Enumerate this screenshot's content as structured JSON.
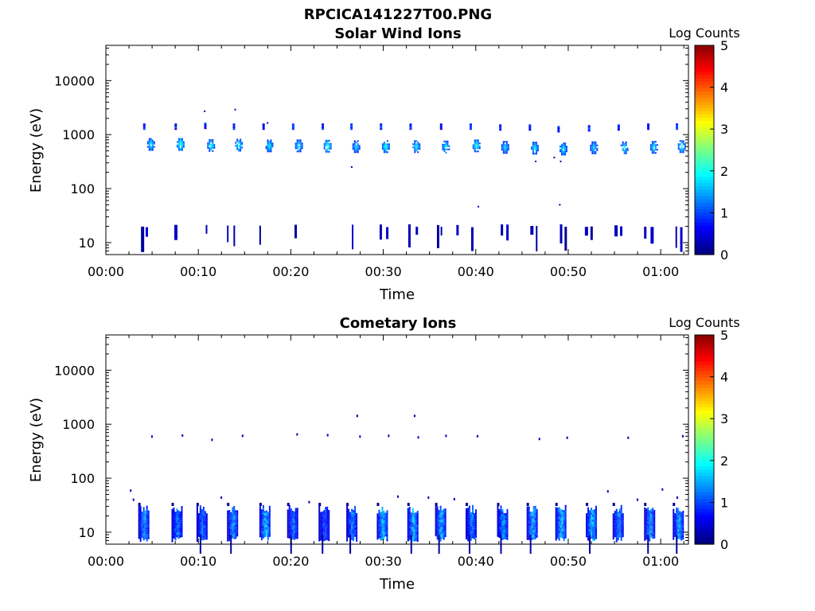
{
  "figure_title": "RPCICA141227T00.PNG",
  "chart_data": [
    {
      "type": "heatmap",
      "title": "Solar Wind Ions",
      "xlabel": "Time",
      "ylabel": "Energy (eV)",
      "x_ticks": [
        "00:00",
        "00:10",
        "00:20",
        "00:30",
        "00:40",
        "00:50",
        "01:00"
      ],
      "x_tick_minutes": [
        0,
        10,
        20,
        30,
        40,
        50,
        60
      ],
      "xlim_minutes": [
        0,
        63
      ],
      "y_scale": "log",
      "y_ticks": [
        "10",
        "100",
        "1000",
        "10000"
      ],
      "ylim": [
        6,
        45000
      ],
      "colorbar": {
        "label": "Log Counts",
        "ticks": [
          "0",
          "1",
          "2",
          "3",
          "4",
          "5"
        ],
        "range": [
          0,
          5
        ],
        "colormap": "jet"
      },
      "bursts": [
        {
          "t": 4.8,
          "e": 680,
          "c": 1.3
        },
        {
          "t": 8.0,
          "e": 680,
          "c": 1.6
        },
        {
          "t": 11.3,
          "e": 650,
          "c": 1.4
        },
        {
          "t": 14.3,
          "e": 660,
          "c": 1.4
        },
        {
          "t": 17.6,
          "e": 640,
          "c": 1.3
        },
        {
          "t": 20.8,
          "e": 640,
          "c": 1.3
        },
        {
          "t": 23.9,
          "e": 630,
          "c": 1.5
        },
        {
          "t": 27.0,
          "e": 620,
          "c": 1.2
        },
        {
          "t": 30.2,
          "e": 620,
          "c": 1.4
        },
        {
          "t": 33.5,
          "e": 620,
          "c": 1.3
        },
        {
          "t": 36.7,
          "e": 610,
          "c": 1.3
        },
        {
          "t": 40.0,
          "e": 640,
          "c": 1.4
        },
        {
          "t": 43.1,
          "e": 600,
          "c": 1.2
        },
        {
          "t": 46.3,
          "e": 580,
          "c": 1.3
        },
        {
          "t": 49.4,
          "e": 560,
          "c": 1.3
        },
        {
          "t": 52.7,
          "e": 590,
          "c": 1.2
        },
        {
          "t": 56.0,
          "e": 590,
          "c": 1.3
        },
        {
          "t": 59.2,
          "e": 600,
          "c": 1.3
        },
        {
          "t": 62.2,
          "e": 620,
          "c": 1.4
        }
      ],
      "alpha_peaks": [
        {
          "t": 4.2,
          "e": 1450
        },
        {
          "t": 7.6,
          "e": 1450
        },
        {
          "t": 10.8,
          "e": 1500
        },
        {
          "t": 13.9,
          "e": 1450
        },
        {
          "t": 17.1,
          "e": 1450
        },
        {
          "t": 20.3,
          "e": 1450
        },
        {
          "t": 23.5,
          "e": 1450
        },
        {
          "t": 26.6,
          "e": 1450
        },
        {
          "t": 29.8,
          "e": 1450
        },
        {
          "t": 33.0,
          "e": 1450
        },
        {
          "t": 36.3,
          "e": 1450
        },
        {
          "t": 39.5,
          "e": 1450
        },
        {
          "t": 42.7,
          "e": 1400
        },
        {
          "t": 45.9,
          "e": 1400
        },
        {
          "t": 49.0,
          "e": 1300
        },
        {
          "t": 52.3,
          "e": 1350
        },
        {
          "t": 55.5,
          "e": 1400
        },
        {
          "t": 58.7,
          "e": 1450
        },
        {
          "t": 61.8,
          "e": 1450
        }
      ],
      "low_energy_spikes_minutes": [
        3.8,
        4.3,
        7.4,
        10.8,
        13.1,
        13.8,
        16.6,
        20.4,
        26.6,
        29.6,
        30.3,
        32.7,
        33.5,
        35.8,
        36.2,
        37.9,
        39.5,
        42.7,
        43.3,
        45.9,
        46.5,
        49.1,
        49.6,
        51.8,
        52.4,
        55.0,
        55.6,
        58.2,
        58.9,
        61.6,
        62.1
      ]
    },
    {
      "type": "heatmap",
      "title": "Cometary Ions",
      "xlabel": "Time",
      "ylabel": "Energy (eV)",
      "x_ticks": [
        "00:00",
        "00:10",
        "00:20",
        "00:30",
        "00:40",
        "00:50",
        "01:00"
      ],
      "x_tick_minutes": [
        0,
        10,
        20,
        30,
        40,
        50,
        60
      ],
      "xlim_minutes": [
        0,
        63
      ],
      "y_scale": "log",
      "y_ticks": [
        "10",
        "100",
        "1000",
        "10000"
      ],
      "ylim": [
        6,
        45000
      ],
      "colorbar": {
        "label": "Log Counts",
        "ticks": [
          "0",
          "1",
          "2",
          "3",
          "4",
          "5"
        ],
        "range": [
          0,
          5
        ],
        "colormap": "jet"
      },
      "low_energy_blocks": [
        {
          "t": 3.5,
          "c": 1.2
        },
        {
          "t": 7.1,
          "c": 1.1
        },
        {
          "t": 9.8,
          "c": 1.0
        },
        {
          "t": 13.1,
          "c": 1.2
        },
        {
          "t": 16.6,
          "c": 1.4
        },
        {
          "t": 19.6,
          "c": 1.0
        },
        {
          "t": 23.0,
          "c": 0.8
        },
        {
          "t": 26.0,
          "c": 1.1
        },
        {
          "t": 29.3,
          "c": 1.5
        },
        {
          "t": 32.6,
          "c": 1.4
        },
        {
          "t": 35.6,
          "c": 1.3
        },
        {
          "t": 38.9,
          "c": 1.1
        },
        {
          "t": 42.3,
          "c": 1.2
        },
        {
          "t": 45.5,
          "c": 1.3
        },
        {
          "t": 48.6,
          "c": 1.4
        },
        {
          "t": 51.9,
          "c": 1.4
        },
        {
          "t": 54.8,
          "c": 1.1
        },
        {
          "t": 58.2,
          "c": 1.2
        },
        {
          "t": 61.3,
          "c": 1.3
        }
      ],
      "sparse_points": [
        {
          "t": 4.9,
          "e": 620
        },
        {
          "t": 8.2,
          "e": 650
        },
        {
          "t": 11.4,
          "e": 540
        },
        {
          "t": 14.7,
          "e": 640
        },
        {
          "t": 20.6,
          "e": 680
        },
        {
          "t": 23.9,
          "e": 660
        },
        {
          "t": 27.1,
          "e": 1500
        },
        {
          "t": 27.4,
          "e": 620
        },
        {
          "t": 30.5,
          "e": 640
        },
        {
          "t": 33.3,
          "e": 1500
        },
        {
          "t": 33.7,
          "e": 600
        },
        {
          "t": 36.7,
          "e": 640
        },
        {
          "t": 40.1,
          "e": 630
        },
        {
          "t": 46.8,
          "e": 560
        },
        {
          "t": 49.8,
          "e": 590
        },
        {
          "t": 56.4,
          "e": 590
        },
        {
          "t": 62.3,
          "e": 630
        },
        {
          "t": 2.6,
          "e": 62
        },
        {
          "t": 2.9,
          "e": 42
        },
        {
          "t": 12.4,
          "e": 46
        },
        {
          "t": 21.9,
          "e": 38
        },
        {
          "t": 31.5,
          "e": 48
        },
        {
          "t": 34.8,
          "e": 46
        },
        {
          "t": 37.6,
          "e": 43
        },
        {
          "t": 54.2,
          "e": 60
        },
        {
          "t": 57.4,
          "e": 42
        },
        {
          "t": 60.1,
          "e": 65
        },
        {
          "t": 61.7,
          "e": 46
        }
      ]
    }
  ]
}
